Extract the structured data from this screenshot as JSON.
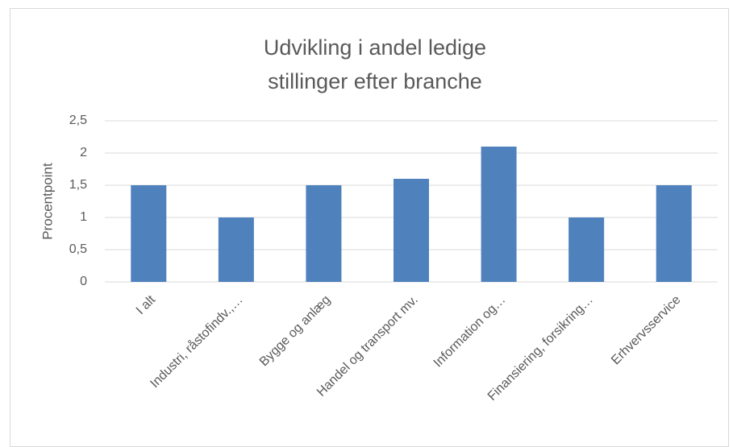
{
  "chart_data": {
    "type": "bar",
    "title": "Udvikling i andel ledige stillinger efter branche",
    "ylabel": "Procentpoint",
    "categories": [
      "I alt",
      "Industri, råstofindv.,…",
      "Bygge og anlæg",
      "Handel og transport mv.",
      "Information og…",
      "Finansiering, forsikring…",
      "Erhvervsservice"
    ],
    "values": [
      1.5,
      1.0,
      1.5,
      1.6,
      2.1,
      1.0,
      1.5
    ],
    "color": "#4f81bd",
    "ylim": [
      0,
      2.5
    ],
    "yticks": [
      0,
      {
        "value": 0.5,
        "label": "0,5"
      },
      1,
      {
        "value": 1.5,
        "label": "1,5"
      },
      2,
      {
        "value": 2.5,
        "label": "2,5"
      }
    ],
    "grid": true
  }
}
